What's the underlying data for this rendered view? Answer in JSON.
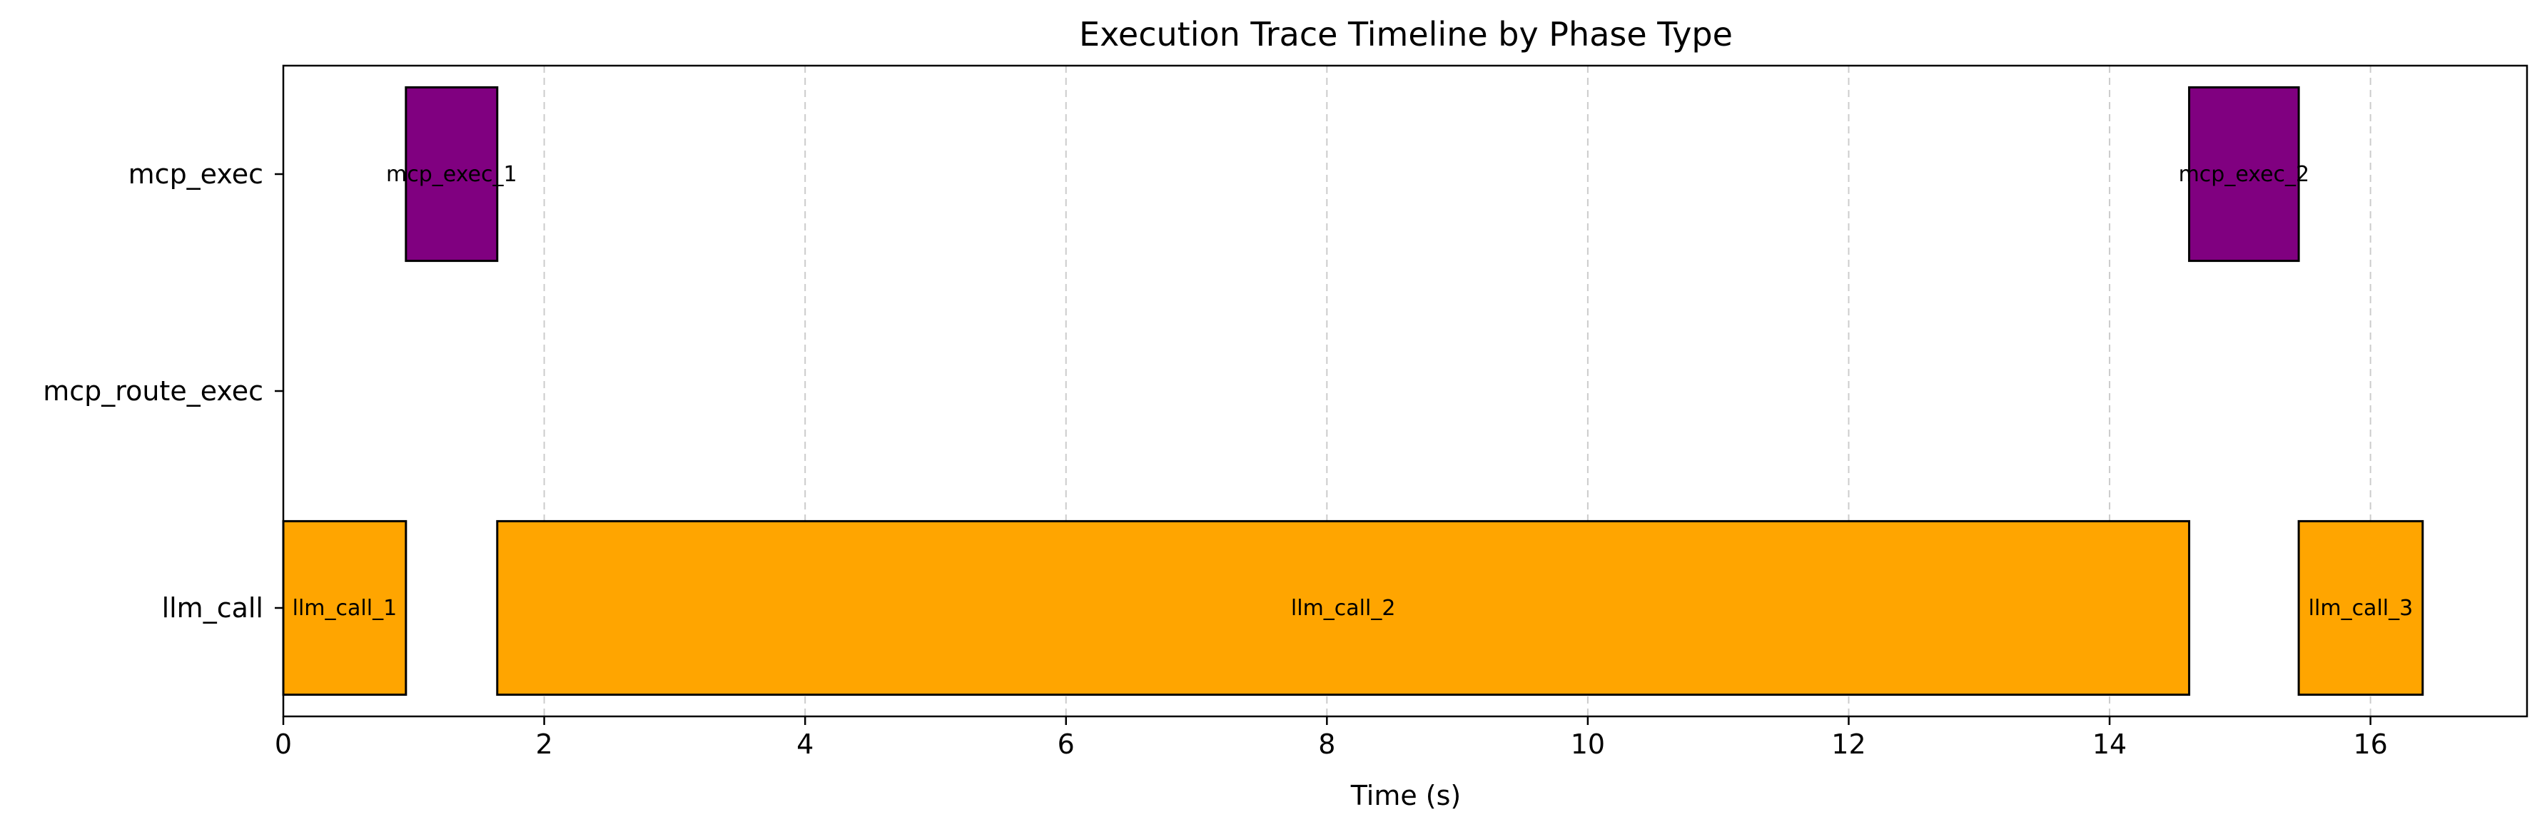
{
  "chart_data": {
    "type": "bar",
    "orientation": "horizontal-timeline",
    "title": "Execution Trace Timeline by Phase Type",
    "xlabel": "Time (s)",
    "ylabel": "",
    "xlim": [
      0,
      17.2
    ],
    "xticks": [
      0,
      2,
      4,
      6,
      8,
      10,
      12,
      14,
      16
    ],
    "xtick_labels": [
      "0",
      "2",
      "4",
      "6",
      "8",
      "10",
      "12",
      "14",
      "16"
    ],
    "categories": [
      "llm_call",
      "mcp_route_exec",
      "mcp_exec"
    ],
    "grid": "vertical dashed",
    "colors": {
      "llm_call": "#FFA500",
      "mcp_exec": "#800080",
      "edge": "#000000",
      "grid": "#cccccc"
    },
    "segments": [
      {
        "label": "llm_call_1",
        "category": "llm_call",
        "start": 0.0,
        "end": 0.94
      },
      {
        "label": "mcp_exec_1",
        "category": "mcp_exec",
        "start": 0.94,
        "end": 1.64
      },
      {
        "label": "llm_call_2",
        "category": "llm_call",
        "start": 1.64,
        "end": 14.61
      },
      {
        "label": "mcp_exec_2",
        "category": "mcp_exec",
        "start": 14.61,
        "end": 15.45
      },
      {
        "label": "llm_call_3",
        "category": "llm_call",
        "start": 15.45,
        "end": 16.4
      }
    ]
  }
}
